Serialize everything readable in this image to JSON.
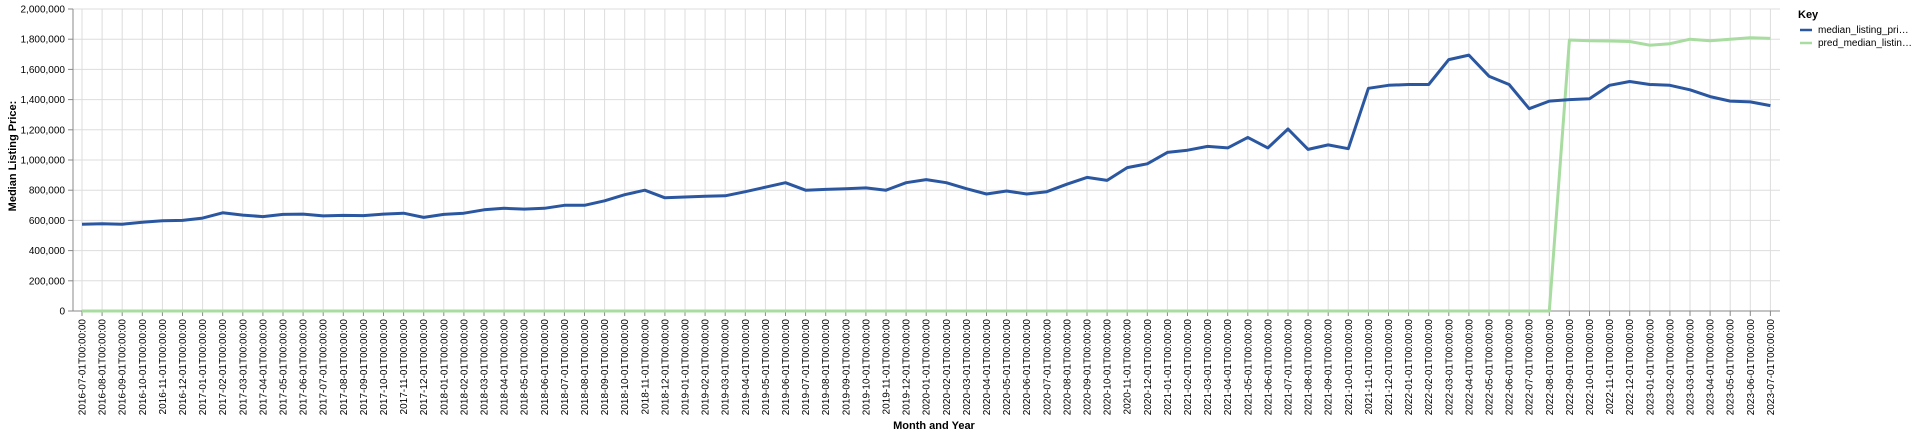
{
  "chart_data": {
    "type": "line",
    "title": "",
    "xlabel": "Month and Year",
    "ylabel": "Median Listing Price:",
    "ylim": [
      0,
      2000000
    ],
    "y_ticks": [
      0,
      200000,
      400000,
      600000,
      800000,
      1000000,
      1200000,
      1400000,
      1600000,
      1800000,
      2000000
    ],
    "y_tick_labels": [
      "0",
      "200,000",
      "400,000",
      "600,000",
      "800,000",
      "1,000,000",
      "1,200,000",
      "1,400,000",
      "1,600,000",
      "1,800,000",
      "2,000,000"
    ],
    "grid": true,
    "legend": {
      "title": "Key",
      "placement": "top-right"
    },
    "x": [
      "2016-07-01T00:00:00",
      "2016-08-01T00:00:00",
      "2016-09-01T00:00:00",
      "2016-10-01T00:00:00",
      "2016-11-01T00:00:00",
      "2016-12-01T00:00:00",
      "2017-01-01T00:00:00",
      "2017-02-01T00:00:00",
      "2017-03-01T00:00:00",
      "2017-04-01T00:00:00",
      "2017-05-01T00:00:00",
      "2017-06-01T00:00:00",
      "2017-07-01T00:00:00",
      "2017-08-01T00:00:00",
      "2017-09-01T00:00:00",
      "2017-10-01T00:00:00",
      "2017-11-01T00:00:00",
      "2017-12-01T00:00:00",
      "2018-01-01T00:00:00",
      "2018-02-01T00:00:00",
      "2018-03-01T00:00:00",
      "2018-04-01T00:00:00",
      "2018-05-01T00:00:00",
      "2018-06-01T00:00:00",
      "2018-07-01T00:00:00",
      "2018-08-01T00:00:00",
      "2018-09-01T00:00:00",
      "2018-10-01T00:00:00",
      "2018-11-01T00:00:00",
      "2018-12-01T00:00:00",
      "2019-01-01T00:00:00",
      "2019-02-01T00:00:00",
      "2019-03-01T00:00:00",
      "2019-04-01T00:00:00",
      "2019-05-01T00:00:00",
      "2019-06-01T00:00:00",
      "2019-07-01T00:00:00",
      "2019-08-01T00:00:00",
      "2019-09-01T00:00:00",
      "2019-10-01T00:00:00",
      "2019-11-01T00:00:00",
      "2019-12-01T00:00:00",
      "2020-01-01T00:00:00",
      "2020-02-01T00:00:00",
      "2020-03-01T00:00:00",
      "2020-04-01T00:00:00",
      "2020-05-01T00:00:00",
      "2020-06-01T00:00:00",
      "2020-07-01T00:00:00",
      "2020-08-01T00:00:00",
      "2020-09-01T00:00:00",
      "2020-10-01T00:00:00",
      "2020-11-01T00:00:00",
      "2020-12-01T00:00:00",
      "2021-01-01T00:00:00",
      "2021-02-01T00:00:00",
      "2021-03-01T00:00:00",
      "2021-04-01T00:00:00",
      "2021-05-01T00:00:00",
      "2021-06-01T00:00:00",
      "2021-07-01T00:00:00",
      "2021-08-01T00:00:00",
      "2021-09-01T00:00:00",
      "2021-10-01T00:00:00",
      "2021-11-01T00:00:00",
      "2021-12-01T00:00:00",
      "2022-01-01T00:00:00",
      "2022-02-01T00:00:00",
      "2022-03-01T00:00:00",
      "2022-04-01T00:00:00",
      "2022-05-01T00:00:00",
      "2022-06-01T00:00:00",
      "2022-07-01T00:00:00",
      "2022-08-01T00:00:00",
      "2022-09-01T00:00:00",
      "2022-10-01T00:00:00",
      "2022-11-01T00:00:00",
      "2022-12-01T00:00:00",
      "2023-01-01T00:00:00",
      "2023-02-01T00:00:00",
      "2023-03-01T00:00:00",
      "2023-04-01T00:00:00",
      "2023-05-01T00:00:00",
      "2023-06-01T00:00:00",
      "2023-07-01T00:00:00"
    ],
    "series": [
      {
        "name": "median_listing_pri…",
        "color": "#2b57a1",
        "values": [
          575000,
          578000,
          575000,
          588000,
          598000,
          600000,
          615000,
          650000,
          635000,
          625000,
          640000,
          642000,
          630000,
          633000,
          632000,
          642000,
          648000,
          620000,
          640000,
          648000,
          670000,
          680000,
          675000,
          680000,
          700000,
          700000,
          730000,
          770000,
          800000,
          750000,
          755000,
          760000,
          763000,
          790000,
          820000,
          850000,
          800000,
          805000,
          810000,
          815000,
          800000,
          850000,
          870000,
          850000,
          810000,
          775000,
          795000,
          775000,
          790000,
          840000,
          885000,
          865000,
          950000,
          975000,
          1050000,
          1065000,
          1090000,
          1080000,
          1150000,
          1080000,
          1205000,
          1070000,
          1100000,
          1075000,
          1475000,
          1495000,
          1500000,
          1500000,
          1665000,
          1695000,
          1555000,
          1500000,
          1340000,
          1390000,
          1400000,
          1405000,
          1495000,
          1520000,
          1500000,
          1495000,
          1465000,
          1420000,
          1390000,
          1385000,
          1360000
        ]
      },
      {
        "name": "pred_median_listin…",
        "color": "#a8dca0",
        "values": [
          0,
          0,
          0,
          0,
          0,
          0,
          0,
          0,
          0,
          0,
          0,
          0,
          0,
          0,
          0,
          0,
          0,
          0,
          0,
          0,
          0,
          0,
          0,
          0,
          0,
          0,
          0,
          0,
          0,
          0,
          0,
          0,
          0,
          0,
          0,
          0,
          0,
          0,
          0,
          0,
          0,
          0,
          0,
          0,
          0,
          0,
          0,
          0,
          0,
          0,
          0,
          0,
          0,
          0,
          0,
          0,
          0,
          0,
          0,
          0,
          0,
          0,
          0,
          0,
          0,
          0,
          0,
          0,
          0,
          0,
          0,
          0,
          0,
          0,
          1795000,
          1790000,
          1788000,
          1785000,
          1760000,
          1770000,
          1800000,
          1790000,
          1800000,
          1810000,
          1805000
        ]
      }
    ]
  }
}
